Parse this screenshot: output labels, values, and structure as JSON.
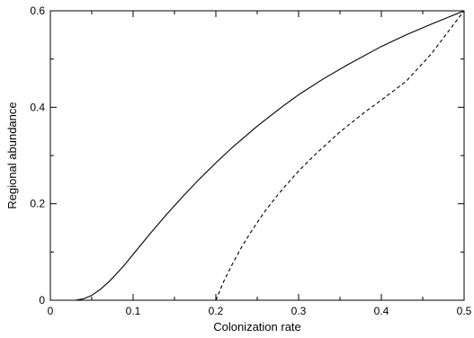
{
  "chart_data": {
    "type": "line",
    "title": "",
    "xlabel": "Colonization rate",
    "ylabel": "Regional abundance",
    "xlim": [
      0,
      0.5
    ],
    "ylim": [
      0,
      0.6
    ],
    "x_ticks": [
      0,
      0.1,
      0.2,
      0.3,
      0.4,
      0.5
    ],
    "x_tick_labels": [
      "0",
      "0.1",
      "0.2",
      "0.3",
      "0.4",
      "0.5"
    ],
    "y_ticks": [
      0,
      0.2,
      0.4,
      0.6
    ],
    "y_tick_labels": [
      "0",
      "0.2",
      "0.4",
      "0.6"
    ],
    "grid": false,
    "legend": "none",
    "series": [
      {
        "style": "solid",
        "color": "#000000",
        "x": [
          0.03,
          0.04,
          0.05,
          0.06,
          0.07,
          0.08,
          0.09,
          0.1,
          0.12,
          0.14,
          0.16,
          0.18,
          0.2,
          0.22,
          0.25,
          0.28,
          0.3,
          0.33,
          0.36,
          0.4,
          0.43,
          0.46,
          0.48,
          0.5
        ],
        "y": [
          0.0,
          0.003,
          0.01,
          0.022,
          0.037,
          0.055,
          0.074,
          0.095,
          0.137,
          0.177,
          0.215,
          0.251,
          0.285,
          0.317,
          0.361,
          0.401,
          0.426,
          0.459,
          0.489,
          0.526,
          0.55,
          0.572,
          0.586,
          0.6
        ]
      },
      {
        "style": "dashed",
        "color": "#000000",
        "x": [
          0.2,
          0.21,
          0.22,
          0.23,
          0.24,
          0.25,
          0.26,
          0.27,
          0.28,
          0.3,
          0.32,
          0.35,
          0.38,
          0.4,
          0.43,
          0.46,
          0.48,
          0.5
        ],
        "y": [
          0.0,
          0.041,
          0.075,
          0.107,
          0.135,
          0.161,
          0.186,
          0.208,
          0.229,
          0.268,
          0.302,
          0.349,
          0.39,
          0.415,
          0.454,
          0.51,
          0.555,
          0.6
        ]
      }
    ]
  }
}
